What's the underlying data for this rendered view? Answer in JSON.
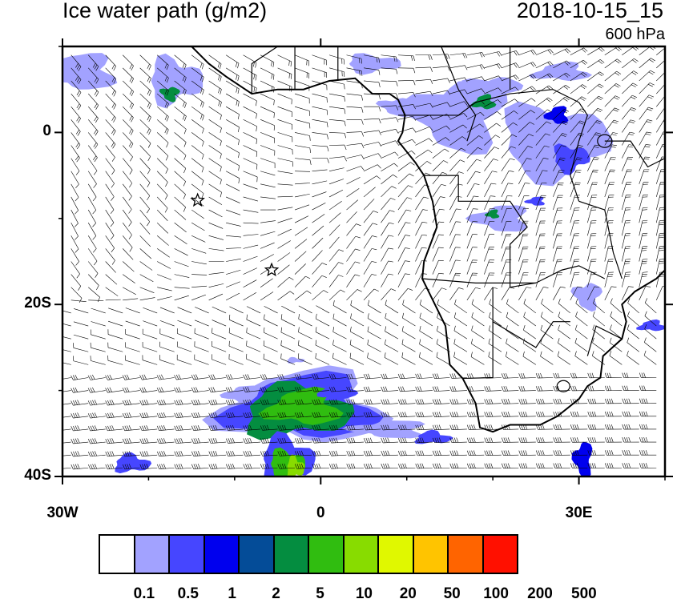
{
  "header": {
    "title": "Ice water path (g/m2)",
    "datetime": "2018-10-15_15",
    "level": "600 hPa"
  },
  "axes": {
    "x_ticks": [
      {
        "lon": -30,
        "label": "30W"
      },
      {
        "lon": 0,
        "label": "0"
      },
      {
        "lon": 30,
        "label": "30E"
      }
    ],
    "y_ticks": [
      {
        "lat": 0,
        "label": "0"
      },
      {
        "lat": -20,
        "label": "20S"
      },
      {
        "lat": -40,
        "label": "40S"
      }
    ],
    "lon_range": [
      -30,
      40
    ],
    "lat_range": [
      -40,
      10
    ]
  },
  "markers": [
    {
      "icon": "star-icon",
      "lon": -14.3,
      "lat": -7.9
    },
    {
      "icon": "star-icon",
      "lon": -5.7,
      "lat": -16
    }
  ],
  "colorbar": {
    "colors": [
      "#ffffff",
      "#a2a2ff",
      "#4646ff",
      "#0000ee",
      "#044c98",
      "#048d40",
      "#30bd10",
      "#88dc00",
      "#e0f800",
      "#ffc400",
      "#ff6400",
      "#ff1000"
    ],
    "labels": [
      "0.1",
      "0.5",
      "1",
      "2",
      "5",
      "10",
      "20",
      "50",
      "100",
      "200",
      "500"
    ]
  }
}
